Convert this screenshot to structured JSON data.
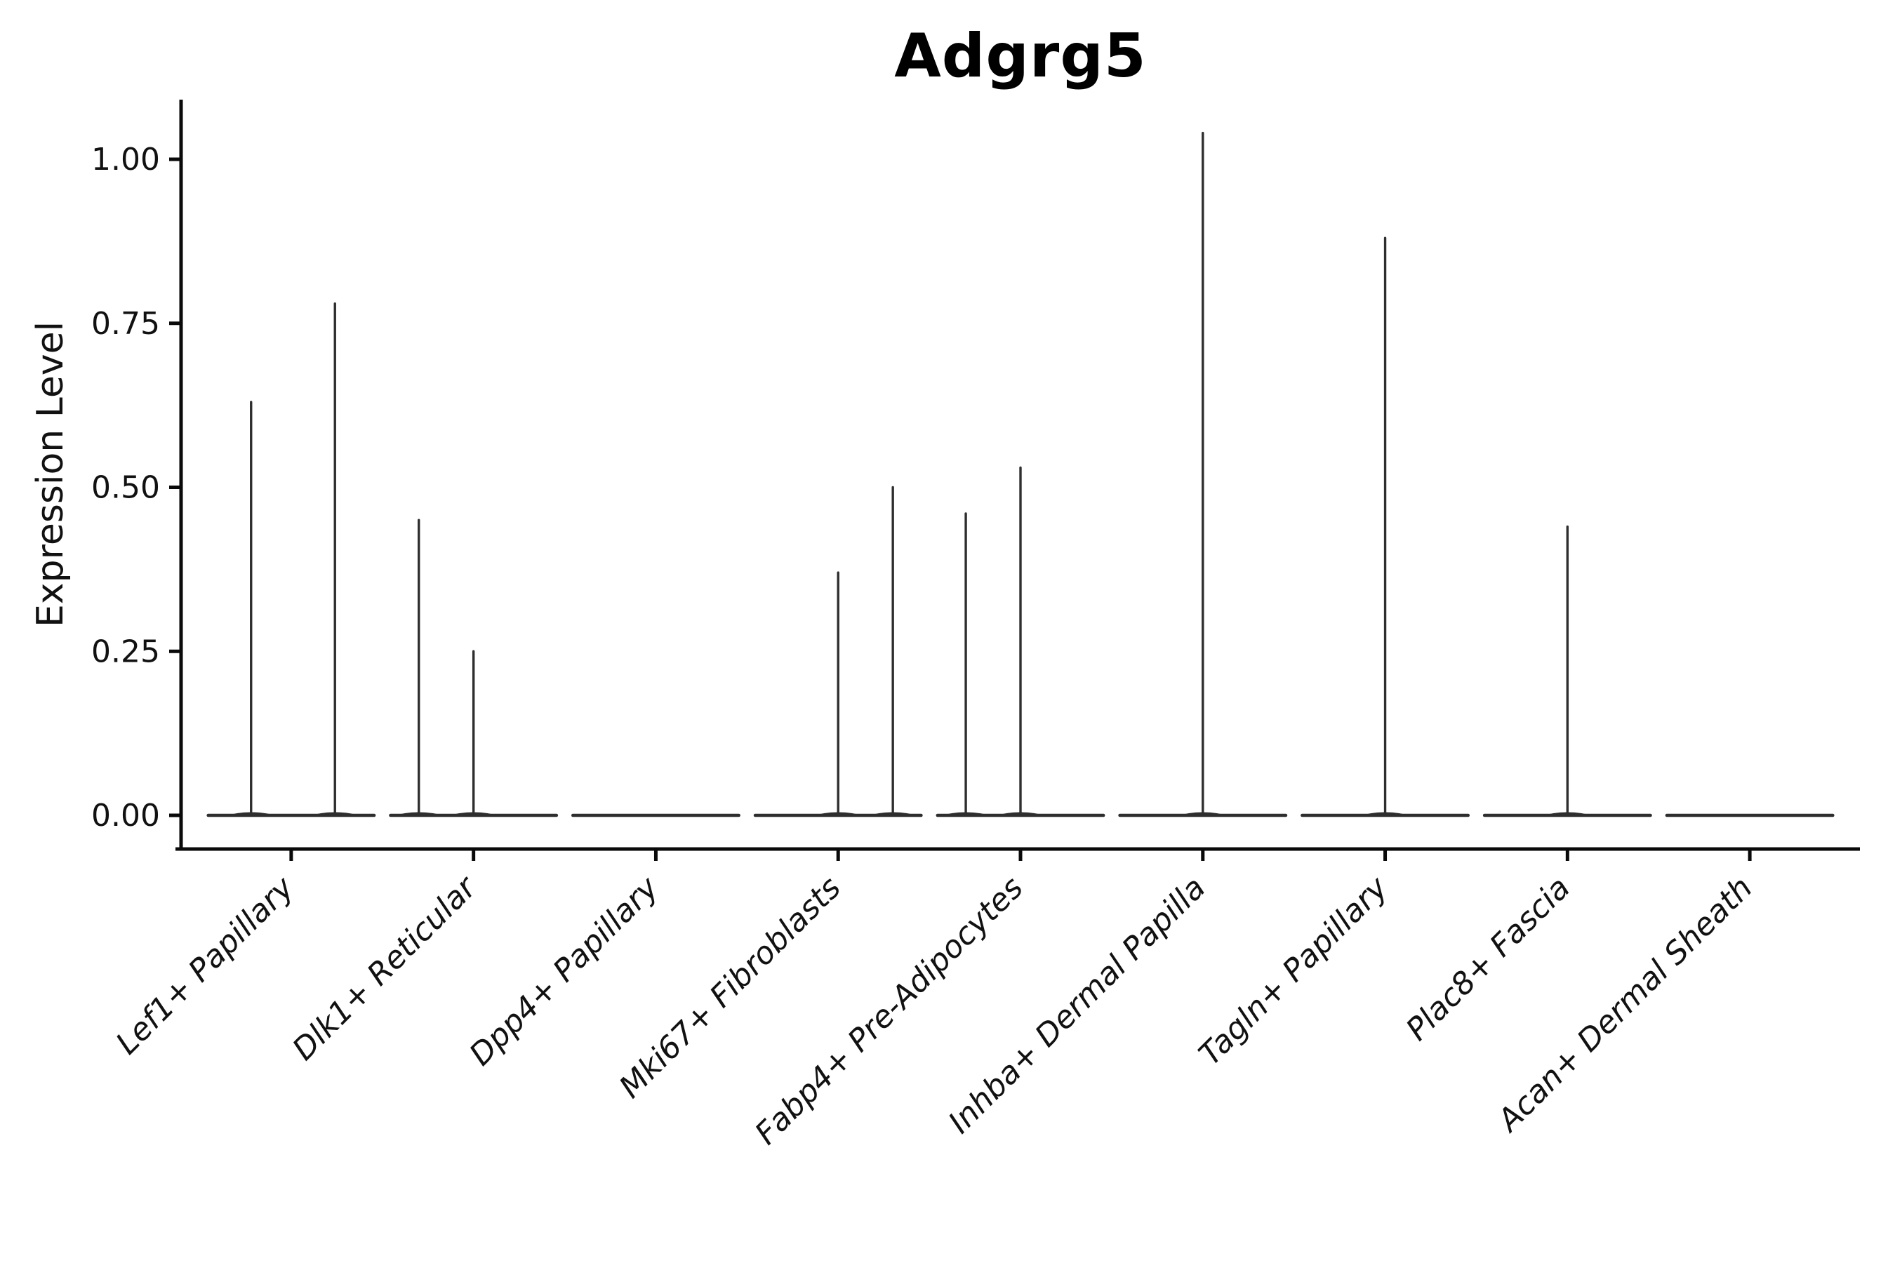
{
  "title": "Adgrg5",
  "chart_data": {
    "type": "violin",
    "title": "Adgrg5",
    "xlabel": "",
    "ylabel": "Expression Level",
    "ylim": [
      -0.05,
      1.09
    ],
    "grid": false,
    "legend": "none",
    "ytick_values": [
      0.0,
      0.25,
      0.5,
      0.75,
      1.0
    ],
    "ytick_labels": [
      "0.00",
      "0.25",
      "0.50",
      "0.75",
      "1.00"
    ],
    "categories": [
      "Lef1+ Papillary",
      "Dlk1+ Reticular",
      "Dpp4+ Papillary",
      "Mki67+ Fibroblasts",
      "Fabp4+ Pre-Adipocytes",
      "Inhba+ Dermal Papilla",
      "Tagln+ Papillary",
      "Plac8+ Fascia",
      "Acan+ Dermal Sheath"
    ],
    "violins": [
      {
        "category": "Lef1+ Papillary",
        "base_value": 0.0,
        "spikes": [
          {
            "offset": -0.22,
            "value": 0.63
          },
          {
            "offset": 0.24,
            "value": 0.78
          }
        ]
      },
      {
        "category": "Dlk1+ Reticular",
        "base_value": 0.0,
        "spikes": [
          {
            "offset": -0.3,
            "value": 0.45
          },
          {
            "offset": 0.0,
            "value": 0.25
          }
        ]
      },
      {
        "category": "Dpp4+ Papillary",
        "base_value": 0.0,
        "spikes": []
      },
      {
        "category": "Mki67+ Fibroblasts",
        "base_value": 0.0,
        "spikes": [
          {
            "offset": 0.0,
            "value": 0.37
          },
          {
            "offset": 0.3,
            "value": 0.5
          }
        ]
      },
      {
        "category": "Fabp4+ Pre-Adipocytes",
        "base_value": 0.0,
        "spikes": [
          {
            "offset": -0.3,
            "value": 0.46
          },
          {
            "offset": 0.0,
            "value": 0.53
          }
        ]
      },
      {
        "category": "Inhba+ Dermal Papilla",
        "base_value": 0.0,
        "spikes": [
          {
            "offset": 0.0,
            "value": 1.04
          }
        ]
      },
      {
        "category": "Tagln+ Papillary",
        "base_value": 0.0,
        "spikes": [
          {
            "offset": 0.0,
            "value": 0.88
          }
        ]
      },
      {
        "category": "Plac8+ Fascia",
        "base_value": 0.0,
        "spikes": [
          {
            "offset": 0.0,
            "value": 0.44
          }
        ]
      },
      {
        "category": "Acan+ Dermal Sheath",
        "base_value": 0.0,
        "spikes": []
      }
    ],
    "style": {
      "violin_color": "#2e2e2e",
      "axis_color": "#0a0a0a",
      "text_color": "#111111",
      "background": "#ffffff",
      "violin_base_halfwidth_frac": 0.455
    }
  }
}
